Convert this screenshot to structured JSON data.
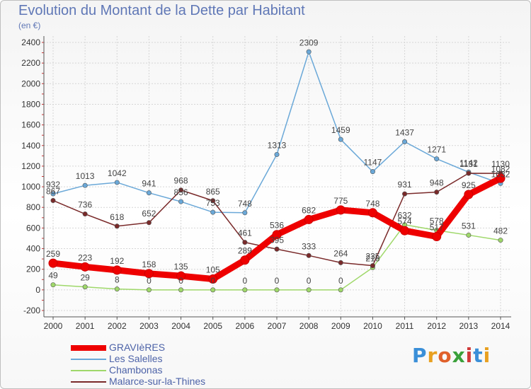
{
  "chart_data": {
    "type": "line",
    "title": "Evolution du Montant de la Dette par Habitant",
    "subtitle": "(en €)",
    "x": [
      "2000",
      "2001",
      "2002",
      "2003",
      "2004",
      "2005",
      "2006",
      "2007",
      "2008",
      "2009",
      "2010",
      "2011",
      "2012",
      "2013",
      "2014"
    ],
    "yticks": [
      -200,
      0,
      200,
      400,
      600,
      800,
      1000,
      1200,
      1400,
      1600,
      1800,
      2000,
      2200,
      2400
    ],
    "ylim": [
      -200,
      2400
    ],
    "grid": true,
    "legend_position": "bottom-left",
    "series": [
      {
        "name": "GRAVIèRES",
        "color": "#ee0000",
        "values": [
          259,
          223,
          192,
          158,
          135,
          105,
          289,
          536,
          682,
          775,
          748,
          574,
          517,
          925,
          1082
        ],
        "labels": [
          "259",
          "223",
          "192",
          "158",
          "135",
          "105",
          "289",
          "536",
          "682",
          "775",
          "748",
          "574",
          "517",
          "925",
          "1082"
        ]
      },
      {
        "name": "Les Salelles",
        "color": "#6aa8d8",
        "values": [
          932,
          1013,
          1042,
          941,
          856,
          753,
          748,
          1313,
          2309,
          1459,
          1147,
          1437,
          1271,
          1142,
          1032
        ],
        "labels": [
          "932",
          "1013",
          "1042",
          "941",
          "856",
          "753",
          "748",
          "1313",
          "2309",
          "1459",
          "1147",
          "1437",
          "1271",
          "1142",
          "1032"
        ]
      },
      {
        "name": "Chambonas",
        "color": "#9fd86a",
        "values": [
          49,
          29,
          8,
          0,
          0,
          0,
          0,
          0,
          0,
          0,
          216,
          632,
          578,
          531,
          482
        ],
        "labels": [
          "49",
          "29",
          "8",
          "0",
          "0",
          "0",
          "0",
          "0",
          "0",
          "0",
          "216",
          "632",
          "578",
          "531",
          "482"
        ]
      },
      {
        "name": "Malarce-sur-la-Thines",
        "color": "#7a2a2a",
        "values": [
          867,
          736,
          618,
          652,
          968,
          865,
          461,
          395,
          333,
          264,
          235,
          931,
          948,
          1131,
          1130
        ],
        "labels": [
          "867",
          "736",
          "618",
          "652",
          "968",
          "865",
          "461",
          "395",
          "333",
          "264",
          "235",
          "931",
          "948",
          "1131",
          "1130"
        ]
      }
    ]
  },
  "logo": {
    "letters": [
      "P",
      "r",
      "o",
      "x",
      "i",
      "t",
      "i"
    ]
  }
}
